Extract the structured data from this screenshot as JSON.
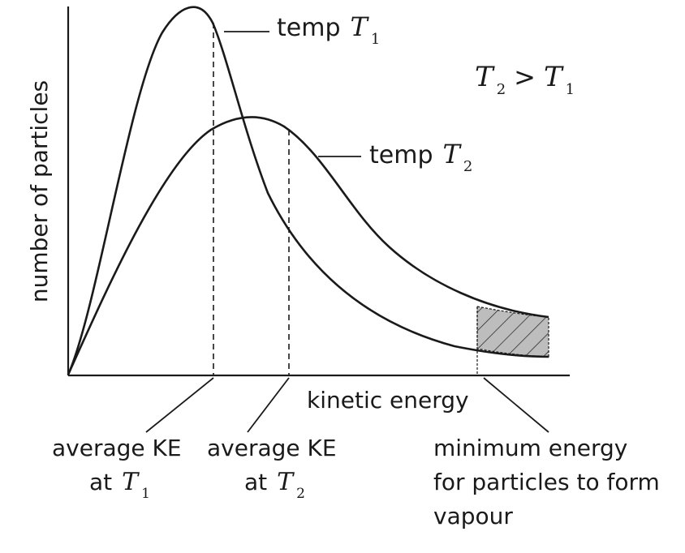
{
  "labels": {
    "y_axis": "number of particles",
    "x_axis": "kinetic energy",
    "curve_t1_prefix": "temp",
    "curve_t2_prefix": "temp",
    "T_symbol": "T",
    "sub_1": "1",
    "sub_2": "2",
    "greater_than": ">",
    "avg_ke_t1_line1": "average KE",
    "avg_ke_t1_line2_prefix": "at",
    "avg_ke_t2_line1": "average KE",
    "avg_ke_t2_line2_prefix": "at",
    "min_energy_line1": "minimum energy",
    "min_energy_line2": "for particles to form",
    "min_energy_line3": "vapour"
  },
  "colors": {
    "ink": "#1a1a1a",
    "shade": "#bdbdbd"
  }
}
